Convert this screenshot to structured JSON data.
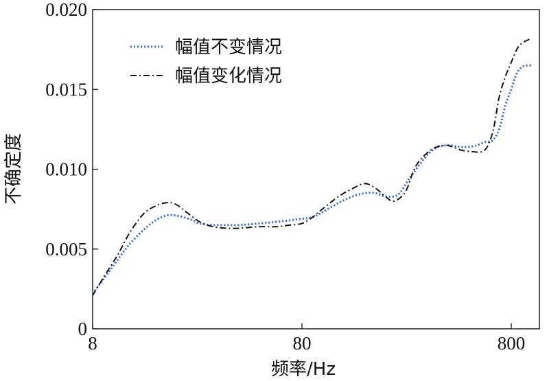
{
  "chart_data": {
    "type": "line",
    "xlabel": "频率/Hz",
    "ylabel": "不确定度",
    "x_scale": "log",
    "xlim": [
      8,
      1280
    ],
    "ylim": [
      0,
      0.02
    ],
    "x_ticks": [
      8,
      80,
      800
    ],
    "x_tick_labels": [
      "8",
      "80",
      "800"
    ],
    "y_ticks": [
      0,
      0.005,
      0.01,
      0.015,
      0.02
    ],
    "y_tick_labels": [
      "0",
      "0.005",
      "0.010",
      "0.015",
      "0.020"
    ],
    "grid": false,
    "legend_position": "top-left",
    "series": [
      {
        "name": "幅值不变情况",
        "color": "#3b6fd8",
        "dash": "dotted",
        "x": [
          8,
          9,
          10.5,
          12,
          14,
          16,
          18,
          20,
          23,
          26,
          30,
          35,
          40,
          50,
          60,
          70,
          80,
          90,
          100,
          120,
          140,
          160,
          180,
          200,
          230,
          260,
          300,
          330,
          360,
          400,
          450,
          500,
          550,
          600,
          650,
          700,
          750,
          800,
          850,
          900,
          950,
          1000
        ],
        "y": [
          0.0022,
          0.0031,
          0.0043,
          0.0053,
          0.0062,
          0.0068,
          0.0071,
          0.0071,
          0.0069,
          0.0066,
          0.0065,
          0.0065,
          0.0065,
          0.0066,
          0.0067,
          0.0068,
          0.0069,
          0.007,
          0.0073,
          0.0079,
          0.0083,
          0.0085,
          0.0085,
          0.0083,
          0.0084,
          0.0094,
          0.0105,
          0.0111,
          0.0114,
          0.0115,
          0.0114,
          0.0114,
          0.0115,
          0.0117,
          0.0118,
          0.0125,
          0.014,
          0.015,
          0.016,
          0.0164,
          0.0165,
          0.0165
        ]
      },
      {
        "name": "幅值变化情况",
        "color": "#111111",
        "dash": "dashdot",
        "x": [
          8,
          9,
          10.5,
          12,
          14,
          16,
          18,
          20,
          23,
          26,
          30,
          35,
          40,
          50,
          60,
          70,
          80,
          90,
          100,
          120,
          140,
          160,
          180,
          200,
          220,
          250,
          280,
          330,
          380,
          420,
          460,
          520,
          580,
          620,
          660,
          700,
          750,
          800,
          850,
          900,
          1000
        ],
        "y": [
          0.0021,
          0.0032,
          0.0046,
          0.006,
          0.0072,
          0.0077,
          0.0079,
          0.0078,
          0.0072,
          0.0067,
          0.0064,
          0.0063,
          0.0063,
          0.0064,
          0.0064,
          0.0065,
          0.0066,
          0.007,
          0.0075,
          0.0083,
          0.0088,
          0.0091,
          0.0088,
          0.0083,
          0.008,
          0.0086,
          0.0102,
          0.0112,
          0.0115,
          0.0114,
          0.0112,
          0.0111,
          0.0111,
          0.0115,
          0.0126,
          0.0145,
          0.0158,
          0.0167,
          0.0175,
          0.0179,
          0.0182
        ]
      }
    ]
  }
}
